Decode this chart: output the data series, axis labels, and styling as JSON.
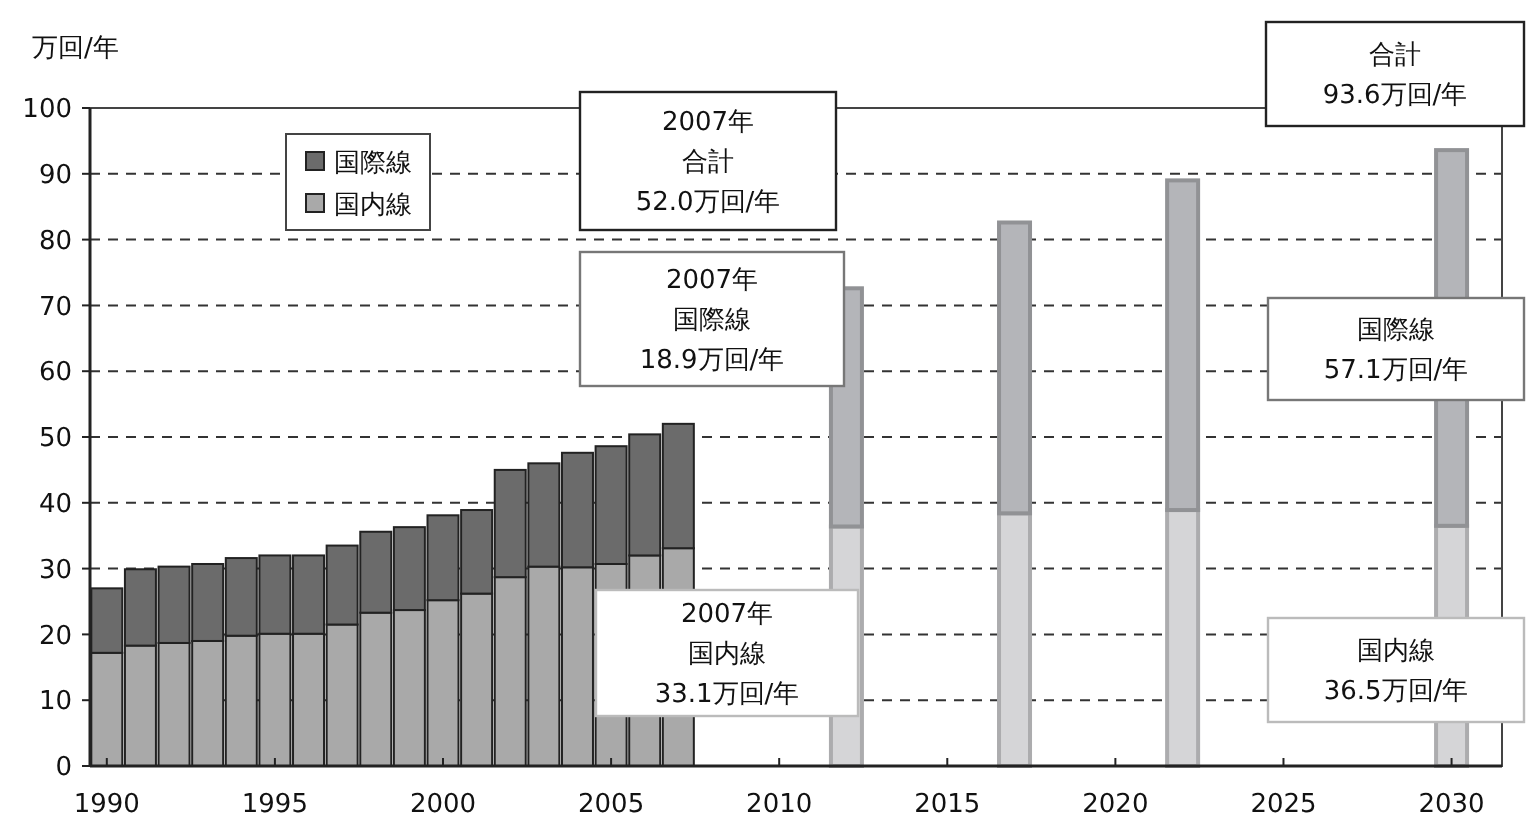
{
  "chart_data": {
    "type": "bar",
    "stacked": true,
    "ylabel": "万回/年",
    "x": [
      1990,
      1991,
      1992,
      1993,
      1994,
      1995,
      1996,
      1997,
      1998,
      1999,
      2000,
      2001,
      2002,
      2003,
      2004,
      2005,
      2006,
      2007,
      2012,
      2017,
      2022,
      2030
    ],
    "series": [
      {
        "name": "国内線",
        "color": "#a9a9a9",
        "colors": [
          "#a9a9a9",
          "#a9a9a9",
          "#a9a9a9",
          "#a9a9a9",
          "#a9a9a9",
          "#a9a9a9",
          "#a9a9a9",
          "#a9a9a9",
          "#a9a9a9",
          "#a9a9a9",
          "#a9a9a9",
          "#a9a9a9",
          "#a9a9a9",
          "#a9a9a9",
          "#a9a9a9",
          "#a9a9a9",
          "#a9a9a9",
          "#a9a9a9",
          "#d5d5d7",
          "#d5d5d7",
          "#d5d5d7",
          "#d5d5d7"
        ],
        "values": [
          17.2,
          18.3,
          18.7,
          19.0,
          19.8,
          20.1,
          20.1,
          21.5,
          23.3,
          23.7,
          25.2,
          26.2,
          28.7,
          30.3,
          30.2,
          30.7,
          32.0,
          33.1,
          36.4,
          38.4,
          38.9,
          36.5
        ]
      },
      {
        "name": "国際線",
        "color": "#6b6b6b",
        "colors": [
          "#6b6b6b",
          "#6b6b6b",
          "#6b6b6b",
          "#6b6b6b",
          "#6b6b6b",
          "#6b6b6b",
          "#6b6b6b",
          "#6b6b6b",
          "#6b6b6b",
          "#6b6b6b",
          "#6b6b6b",
          "#6b6b6b",
          "#6b6b6b",
          "#6b6b6b",
          "#6b6b6b",
          "#6b6b6b",
          "#6b6b6b",
          "#6b6b6b",
          "#b4b5b9",
          "#b4b5b9",
          "#b4b5b9",
          "#b4b5b9"
        ],
        "values": [
          9.8,
          11.6,
          11.6,
          11.7,
          11.8,
          11.9,
          11.9,
          12.0,
          12.3,
          12.6,
          12.9,
          12.7,
          16.3,
          15.7,
          17.4,
          17.9,
          18.4,
          18.9,
          36.2,
          44.2,
          50.1,
          57.1
        ]
      }
    ],
    "xlim": [
      1989.5,
      2031.5
    ],
    "xticks": [
      1990,
      1995,
      2000,
      2005,
      2010,
      2015,
      2020,
      2025,
      2030
    ],
    "ylim": [
      0,
      100
    ],
    "yticks": [
      0,
      10,
      20,
      30,
      40,
      50,
      60,
      70,
      80,
      90,
      100
    ],
    "grid": "y",
    "legend": "top left",
    "annotations": [
      "2007年",
      "合計",
      "52.0万回/年",
      "2007年",
      "国際線",
      "18.9万回/年",
      "2007年",
      "国内線",
      "33.1万回/年",
      "合計",
      "93.6万回/年",
      "国際線",
      "57.1万回/年",
      "国内線",
      "36.5万回/年"
    ]
  }
}
